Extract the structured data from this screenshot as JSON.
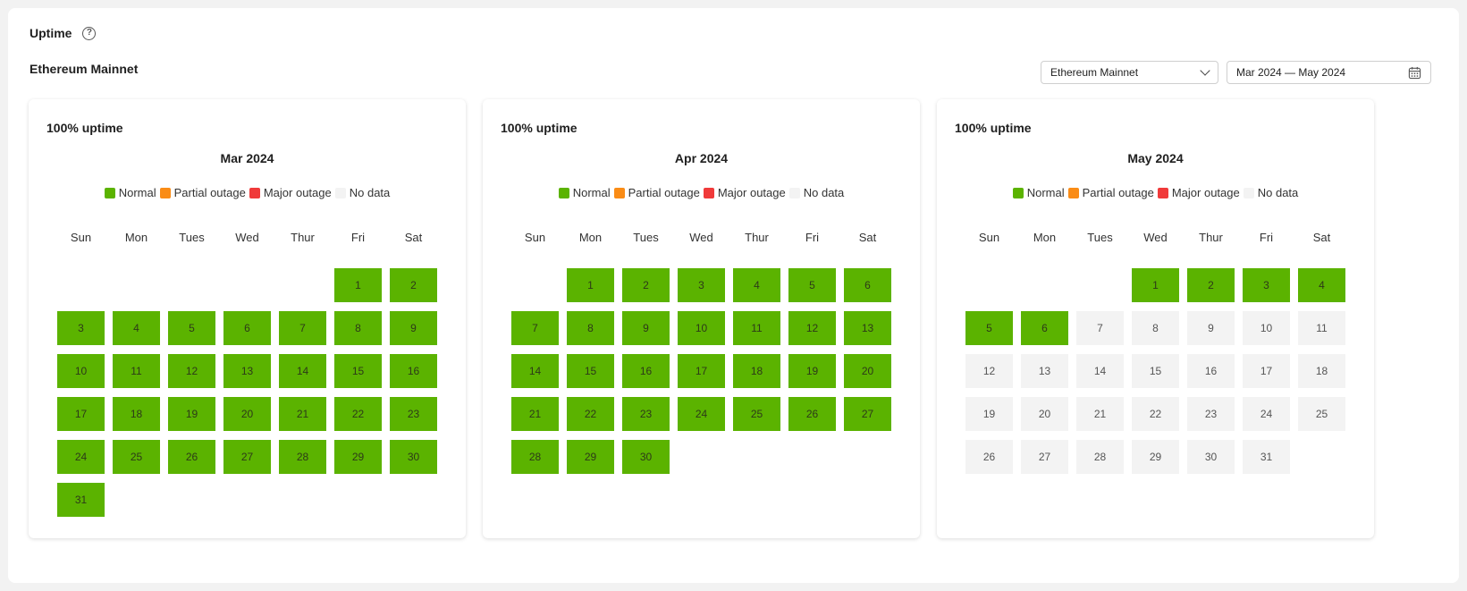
{
  "header": {
    "title": "Uptime",
    "help_icon": "?",
    "network_title": "Ethereum Mainnet"
  },
  "controls": {
    "network_select_value": "Ethereum Mainnet",
    "date_range_value": "Mar 2024 — May 2024"
  },
  "colors": {
    "normal": "#5bb300",
    "partial": "#fa8c16",
    "major": "#f03a3a",
    "nodata": "#f3f3f3"
  },
  "legend": [
    {
      "key": "normal",
      "label": "Normal"
    },
    {
      "key": "partial",
      "label": "Partial outage"
    },
    {
      "key": "major",
      "label": "Major outage"
    },
    {
      "key": "nodata",
      "label": "No data"
    }
  ],
  "weekdays": [
    "Sun",
    "Mon",
    "Tues",
    "Wed",
    "Thur",
    "Fri",
    "Sat"
  ],
  "months": [
    {
      "uptime": "100% uptime",
      "label": "Mar 2024",
      "start_weekday": 5,
      "days": 31,
      "status_by_day": {
        "normal_through": 31
      }
    },
    {
      "uptime": "100% uptime",
      "label": "Apr 2024",
      "start_weekday": 1,
      "days": 30,
      "status_by_day": {
        "normal_through": 30
      }
    },
    {
      "uptime": "100% uptime",
      "label": "May 2024",
      "start_weekday": 3,
      "days": 31,
      "status_by_day": {
        "normal_through": 6
      }
    }
  ]
}
